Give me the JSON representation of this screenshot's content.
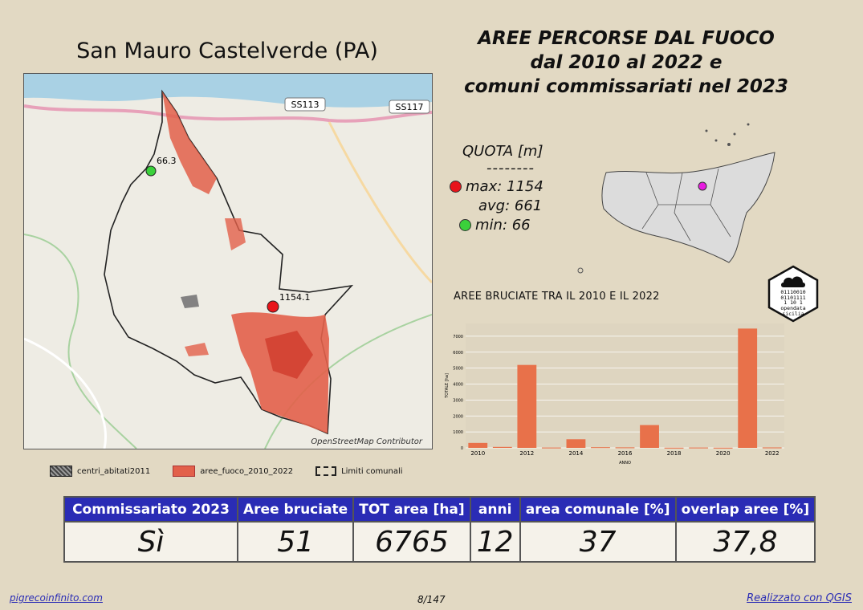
{
  "map": {
    "title": "San Mauro Castelverde (PA)",
    "credit": "OpenStreetMap Contributor",
    "roads": [
      "SS113",
      "SS117"
    ],
    "label_min": "66.3",
    "label_max": "1154.1"
  },
  "header": {
    "line1": "AREE PERCORSE DAL FUOCO",
    "line2": "dal 2010 al 2022 e",
    "line3": "comuni commissariati nel 2023"
  },
  "quota": {
    "title": "QUOTA [m]",
    "separator": "--------",
    "max": "max: 1154",
    "avg": "avg: 661",
    "min": "min: 66",
    "max_color": "#e8141a",
    "min_color": "#3bd13b"
  },
  "logo": {
    "line1": "01110010",
    "line2": "01101111",
    "line3": "1 10 1",
    "line4": "opendata",
    "line5": "sicilia"
  },
  "chart_data": {
    "type": "bar",
    "title": "AREE BRUCIATE TRA IL 2010 E IL 2022",
    "xlabel": "ANNO",
    "ylabel": "TOTALE [ha]",
    "categories": [
      "2010",
      "2011",
      "2012",
      "2013",
      "2014",
      "2015",
      "2016",
      "2017",
      "2018",
      "2019",
      "2020",
      "2021",
      "2022"
    ],
    "x_ticks": [
      "2010",
      "2012",
      "2014",
      "2016",
      "2018",
      "2020",
      "2022"
    ],
    "y_ticks": [
      "0",
      "1000",
      "2000",
      "3000",
      "4000",
      "5000",
      "6000",
      "7000"
    ],
    "values": [
      310,
      60,
      5200,
      20,
      540,
      40,
      30,
      1430,
      10,
      20,
      10,
      7480,
      25
    ],
    "ylim": [
      0,
      7800
    ],
    "bar_color": "#e8714a"
  },
  "legend": {
    "item1": "centri_abitati2011",
    "item2": "aree_fuoco_2010_2022",
    "item3": "Limiti comunali"
  },
  "stats": {
    "headers": [
      "Commissariato 2023",
      "Aree bruciate",
      "TOT area [ha]",
      "anni",
      "area comunale [%]",
      "overlap aree [%]"
    ],
    "values": [
      "Sì",
      "51",
      "6765",
      "12",
      "37",
      "37,8"
    ]
  },
  "footer": {
    "left": "pigrecoinfinito.com",
    "page": "8/147",
    "right": "Realizzato con QGIS"
  }
}
